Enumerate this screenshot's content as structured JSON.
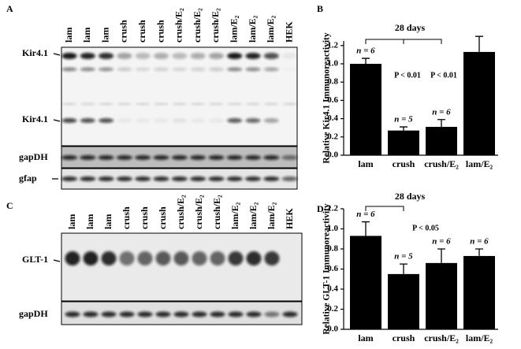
{
  "panel_labels": [
    "A",
    "B",
    "C",
    "D"
  ],
  "blot_a": {
    "lanes": [
      "lam",
      "lam",
      "lam",
      "crush",
      "crush",
      "crush",
      "crush/E₂",
      "crush/E₂",
      "crush/E₂",
      "lam/E₂",
      "lam/E₂",
      "lam/E₂",
      "HEK"
    ],
    "rows": [
      "Kir4.1",
      "Kir4.1",
      "gapDH",
      "gfap"
    ]
  },
  "blot_c": {
    "lanes": [
      "lam",
      "lam",
      "lam",
      "crush",
      "crush",
      "crush",
      "crush/E₂",
      "crush/E₂",
      "crush/E₂",
      "lam/E₂",
      "lam/E₂",
      "lam/E₂",
      "HEK"
    ],
    "rows": [
      "GLT-1",
      "gapDH"
    ]
  },
  "chart_data": [
    {
      "type": "bar",
      "title": "28 days",
      "y_label": "Relative Kir4.1 Immunoreactivity",
      "categories": [
        "lam",
        "crush",
        "crush/E₂",
        "lam/E₂"
      ],
      "values": [
        1.0,
        0.27,
        0.31,
        1.13
      ],
      "errors": [
        0.06,
        0.04,
        0.08,
        0.17
      ],
      "color": "#000000",
      "n_labels": [
        "n = 6",
        "n = 5",
        "n = 6",
        null
      ],
      "annotations": [
        "P < 0.01",
        "P < 0.01"
      ],
      "ylim": [
        0,
        1.25
      ],
      "yticks": [
        {
          "value": 0,
          "label": "0.0"
        },
        {
          "value": 0.2,
          "label": "0.2"
        },
        {
          "value": 0.4,
          "label": "0.4"
        },
        {
          "value": 0.6,
          "label": "0.6"
        },
        {
          "value": 0.8,
          "label": "0.8"
        },
        {
          "value": 1.0,
          "label": "1.0"
        },
        {
          "value": 1.2,
          "label": "1.2"
        }
      ]
    },
    {
      "type": "bar",
      "title": "28 days",
      "y_label": "Relative GLT-1 Immunoreactivity",
      "categories": [
        "lam",
        "crush",
        "crush/E₂",
        "lam/E₂"
      ],
      "values": [
        0.93,
        0.55,
        0.66,
        0.73
      ],
      "errors": [
        0.14,
        0.1,
        0.14,
        0.07
      ],
      "color": "#000000",
      "n_labels": [
        "n = 6",
        "n = 5",
        "n = 6",
        "n = 6"
      ],
      "annotations": [
        "P < 0.05"
      ],
      "ylim": [
        0,
        1.2
      ],
      "yticks": [
        {
          "value": 0,
          "label": "0.0"
        },
        {
          "value": 0.2,
          "label": "0.2"
        },
        {
          "value": 0.4,
          "label": "0.4"
        },
        {
          "value": 0.6,
          "label": "0.6"
        },
        {
          "value": 0.8,
          "label": "0.8"
        },
        {
          "value": 1.0,
          "label": "1.0"
        },
        {
          "value": 1.2,
          "label": "1.2"
        }
      ]
    }
  ]
}
